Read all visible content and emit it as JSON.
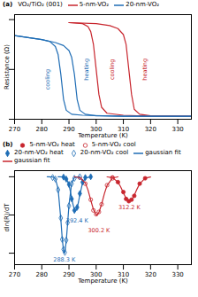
{
  "chart_data": [
    {
      "type": "line",
      "title": "(a)",
      "legend_title": "VO₂/TiO₂ (001)",
      "xlabel": "Temperature (K)",
      "ylabel": "Resistance (Ω)",
      "xlim": [
        270,
        335
      ],
      "xticks": [
        270,
        280,
        290,
        300,
        310,
        320,
        330
      ],
      "ylim": [
        0,
        10.5
      ],
      "yticks": [
        0,
        5,
        10
      ],
      "tick_labels": "x",
      "series": [
        {
          "name": "5-nm-VO₂",
          "color": "#c8262e",
          "x": [
            290,
            300,
            305,
            308,
            310,
            311,
            312,
            313,
            314,
            316,
            320,
            335
          ],
          "values": [
            9.7,
            9.6,
            9.4,
            9.1,
            8.5,
            7.5,
            5.0,
            2.5,
            1.0,
            0.5,
            0.35,
            0.3
          ]
        },
        {
          "name": "5-nm-VO₂",
          "color": "#c8262e",
          "x": [
            290,
            295,
            297,
            298,
            299,
            300,
            301,
            302,
            304,
            310,
            320,
            335
          ],
          "values": [
            9.7,
            9.6,
            9.3,
            8.8,
            7.5,
            5.0,
            2.5,
            1.2,
            0.6,
            0.4,
            0.3,
            0.3
          ]
        },
        {
          "name": "20-nm-VO₂",
          "color": "#1f6db5",
          "x": [
            270,
            275,
            280,
            285,
            288,
            290,
            291,
            292,
            293,
            294,
            296,
            300,
            310,
            320,
            335
          ],
          "values": [
            8.4,
            8.2,
            8.0,
            7.7,
            7.4,
            6.9,
            6.2,
            4.5,
            2.0,
            0.9,
            0.5,
            0.35,
            0.3,
            0.3,
            0.3
          ]
        },
        {
          "name": "20-nm-VO₂",
          "color": "#1f6db5",
          "x": [
            270,
            275,
            280,
            283,
            285,
            286,
            287,
            288,
            289,
            291,
            295,
            310,
            335
          ],
          "values": [
            8.4,
            8.2,
            8.0,
            7.8,
            7.3,
            6.5,
            4.5,
            2.0,
            0.9,
            0.5,
            0.4,
            0.3,
            0.3
          ]
        }
      ],
      "annotations": [
        {
          "text": "cooling",
          "x": 282,
          "y": 4,
          "color": "#1f6db5"
        },
        {
          "text": "heating",
          "x": 296.5,
          "y": 5,
          "color": "#1f6db5"
        },
        {
          "text": "cooling",
          "x": 306,
          "y": 5,
          "color": "#c8262e"
        },
        {
          "text": "heating",
          "x": 318,
          "y": 5,
          "color": "#c8262e"
        }
      ]
    },
    {
      "type": "scatter",
      "title": "(b)",
      "xlabel": "Temperature (K)",
      "ylabel": "dln(R)/dT",
      "xlim": [
        270,
        335
      ],
      "xticks": [
        270,
        280,
        290,
        300,
        310,
        320,
        330
      ],
      "ylim": [
        -1.15,
        0.08
      ],
      "yticks": [
        -1,
        -0.5,
        0
      ],
      "tick_labels": "x",
      "series": [
        {
          "name": "5-nm-VO₂ heat",
          "type": "scatter",
          "marker": "circle",
          "color": "#c8262e",
          "x": [
            306,
            308,
            310,
            311,
            312,
            313,
            314,
            316,
            318
          ],
          "values": [
            -0.01,
            -0.07,
            -0.2,
            -0.29,
            -0.32,
            -0.3,
            -0.25,
            -0.09,
            -0.02
          ]
        },
        {
          "name": "5-nm-VO₂ cool",
          "type": "scatter",
          "marker": "open-circle",
          "color": "#c8262e",
          "x": [
            294,
            296,
            298,
            299,
            300,
            301,
            302,
            304,
            306
          ],
          "values": [
            -0.01,
            -0.09,
            -0.3,
            -0.44,
            -0.49,
            -0.46,
            -0.36,
            -0.11,
            -0.02
          ]
        },
        {
          "name": "20-nm-VO₂ heat",
          "type": "scatter",
          "marker": "diamond",
          "color": "#1f6db5",
          "x": [
            288,
            289,
            290,
            291,
            292,
            293,
            294,
            295,
            296,
            298
          ],
          "values": [
            -0.004,
            -0.03,
            -0.1,
            -0.29,
            -0.44,
            -0.4,
            -0.22,
            -0.07,
            -0.01,
            0
          ]
        },
        {
          "name": "20-nm-VO₂ cool",
          "type": "scatter",
          "marker": "open-diamond",
          "color": "#1f6db5",
          "x": [
            284,
            285,
            286,
            287,
            287.5,
            288,
            288.5,
            289,
            289.5,
            290,
            291,
            292,
            294
          ],
          "values": [
            -0.01,
            -0.03,
            -0.17,
            -0.54,
            -0.82,
            -0.95,
            -0.99,
            -0.83,
            -0.6,
            -0.38,
            -0.09,
            -0.02,
            0
          ]
        },
        {
          "name": "gaussian fit",
          "type": "line",
          "color": "#1f6db5",
          "x": [
            282,
            284,
            285,
            286,
            287,
            287.5,
            288,
            288.3,
            288.5,
            289,
            289.5,
            290,
            291,
            292,
            294
          ],
          "values": [
            0,
            -0.002,
            -0.023,
            -0.159,
            -0.556,
            -0.8,
            -0.97,
            -1.0,
            -0.986,
            -0.84,
            -0.61,
            -0.37,
            -0.08,
            -0.009,
            0
          ]
        },
        {
          "name": "gaussian fit",
          "type": "line",
          "color": "#1f6db5",
          "x": [
            286,
            288,
            289,
            290,
            291,
            291.5,
            292,
            292.4,
            293,
            293.5,
            294,
            295,
            296,
            298
          ],
          "values": [
            0,
            -0.003,
            -0.023,
            -0.104,
            -0.275,
            -0.365,
            -0.432,
            -0.45,
            -0.41,
            -0.329,
            -0.234,
            -0.081,
            -0.017,
            0
          ]
        },
        {
          "name": "gaussian fit",
          "type": "line",
          "color": "#c8262e",
          "x": [
            292,
            294,
            296,
            297,
            298,
            299,
            300,
            300.2,
            301,
            302,
            303,
            304,
            306,
            308
          ],
          "values": [
            -0.001,
            -0.01,
            -0.081,
            -0.174,
            -0.304,
            -0.431,
            -0.498,
            -0.5,
            -0.468,
            -0.358,
            -0.223,
            -0.113,
            -0.016,
            -0.001
          ]
        },
        {
          "name": "gaussian fit",
          "type": "line",
          "color": "#c8262e",
          "x": [
            304,
            306,
            308,
            309,
            310,
            311,
            312,
            312.2,
            313,
            314,
            315,
            316,
            318,
            320
          ],
          "values": [
            -0.001,
            -0.011,
            -0.069,
            -0.132,
            -0.21,
            -0.282,
            -0.319,
            -0.32,
            -0.303,
            -0.242,
            -0.162,
            -0.092,
            -0.017,
            -0.002
          ]
        }
      ],
      "annotations": [
        {
          "text": "288.3 K",
          "x": 288.3,
          "y": -1.08,
          "color": "#1f6db5"
        },
        {
          "text": "292.4 K",
          "x": 293,
          "y": -0.58,
          "color": "#1f6db5"
        },
        {
          "text": "300.2 K",
          "x": 301,
          "y": -0.7,
          "color": "#c8262e"
        },
        {
          "text": "312.2 K",
          "x": 312.2,
          "y": -0.4,
          "color": "#c8262e"
        }
      ]
    }
  ]
}
